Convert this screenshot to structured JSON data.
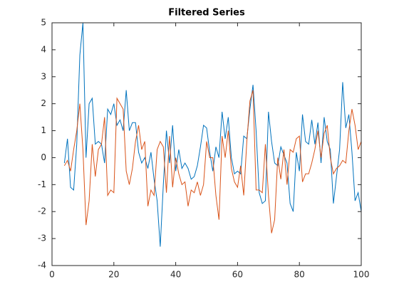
{
  "chart_data": {
    "type": "line",
    "title": "Filtered Series",
    "x": [
      4,
      5,
      6,
      7,
      8,
      9,
      10,
      11,
      12,
      13,
      14,
      15,
      16,
      17,
      18,
      19,
      20,
      21,
      22,
      23,
      24,
      25,
      26,
      27,
      28,
      29,
      30,
      31,
      32,
      33,
      34,
      35,
      36,
      37,
      38,
      39,
      40,
      41,
      42,
      43,
      44,
      45,
      46,
      47,
      48,
      49,
      50,
      51,
      52,
      53,
      54,
      55,
      56,
      57,
      58,
      59,
      60,
      61,
      62,
      63,
      64,
      65,
      66,
      67,
      68,
      69,
      70,
      71,
      72,
      73,
      74,
      75,
      76,
      77,
      78,
      79,
      80,
      81,
      82,
      83,
      84,
      85,
      86,
      87,
      88,
      89,
      90,
      91,
      92,
      93,
      94,
      95,
      96,
      97,
      98,
      99,
      100
    ],
    "series": [
      {
        "color": "#0072bd",
        "values": [
          -0.2,
          0.7,
          -1.1,
          -1.2,
          0.5,
          3.8,
          5.0,
          0.0,
          2.0,
          2.2,
          0.5,
          0.6,
          0.5,
          -0.2,
          1.8,
          1.6,
          2.0,
          1.2,
          1.4,
          1.0,
          2.5,
          1.0,
          1.3,
          1.3,
          0.2,
          -0.2,
          0.0,
          -0.4,
          0.2,
          -0.8,
          -1.6,
          -3.3,
          -1.0,
          1.0,
          -0.2,
          1.2,
          -0.5,
          0.3,
          -0.4,
          -0.2,
          -0.4,
          -0.8,
          -0.7,
          -0.3,
          0.4,
          1.2,
          1.1,
          0.2,
          -0.5,
          0.4,
          0.0,
          1.7,
          0.7,
          1.5,
          0.0,
          -0.6,
          -0.5,
          -0.6,
          0.8,
          0.7,
          1.8,
          2.7,
          1.0,
          -1.3,
          -1.7,
          -1.6,
          1.7,
          0.6,
          -0.2,
          -0.3,
          0.4,
          0.1,
          -0.2,
          -1.7,
          -2.0,
          0.2,
          -0.5,
          1.6,
          0.6,
          0.5,
          1.4,
          0.5,
          1.3,
          -0.2,
          1.5,
          0.6,
          0.3,
          -1.7,
          -0.7,
          0.3,
          2.8,
          1.1,
          1.6,
          0.2,
          -1.6,
          -1.3,
          -2.0
        ]
      },
      {
        "color": "#d95319",
        "values": [
          -0.3,
          -0.1,
          -0.5,
          0.3,
          1.0,
          2.0,
          0.3,
          -2.5,
          -1.6,
          0.5,
          -0.7,
          0.3,
          0.5,
          1.5,
          -1.4,
          -1.2,
          -1.3,
          2.2,
          2.0,
          1.8,
          -0.5,
          -1.0,
          -0.4,
          0.6,
          1.2,
          0.3,
          0.6,
          -1.8,
          -1.2,
          -1.4,
          0.3,
          0.6,
          0.4,
          -1.3,
          0.8,
          -1.1,
          0.0,
          -0.6,
          -1.0,
          -0.9,
          -1.8,
          -1.2,
          -1.3,
          -0.9,
          -1.4,
          -1.0,
          0.6,
          0.0,
          0.0,
          -1.4,
          -2.3,
          0.8,
          0.0,
          1.0,
          -0.4,
          -0.9,
          -1.1,
          -0.3,
          -1.4,
          0.6,
          2.1,
          2.5,
          -1.2,
          -1.2,
          -1.3,
          0.5,
          -1.4,
          -2.8,
          -2.3,
          0.0,
          -0.8,
          0.3,
          -1.0,
          0.3,
          0.2,
          0.7,
          0.8,
          -0.9,
          -0.6,
          -0.6,
          -0.2,
          0.3,
          1.0,
          0.0,
          0.9,
          1.2,
          0.0,
          -0.6,
          -0.4,
          -0.3,
          -0.1,
          -0.2,
          1.0,
          1.8,
          1.2,
          0.3,
          0.6
        ]
      }
    ],
    "xlim": [
      0,
      100
    ],
    "xticks": [
      0,
      20,
      40,
      60,
      80,
      100
    ],
    "ylim": [
      -4,
      5
    ],
    "yticks": [
      -4,
      -3,
      -2,
      -1,
      0,
      1,
      2,
      3,
      4,
      5
    ]
  }
}
